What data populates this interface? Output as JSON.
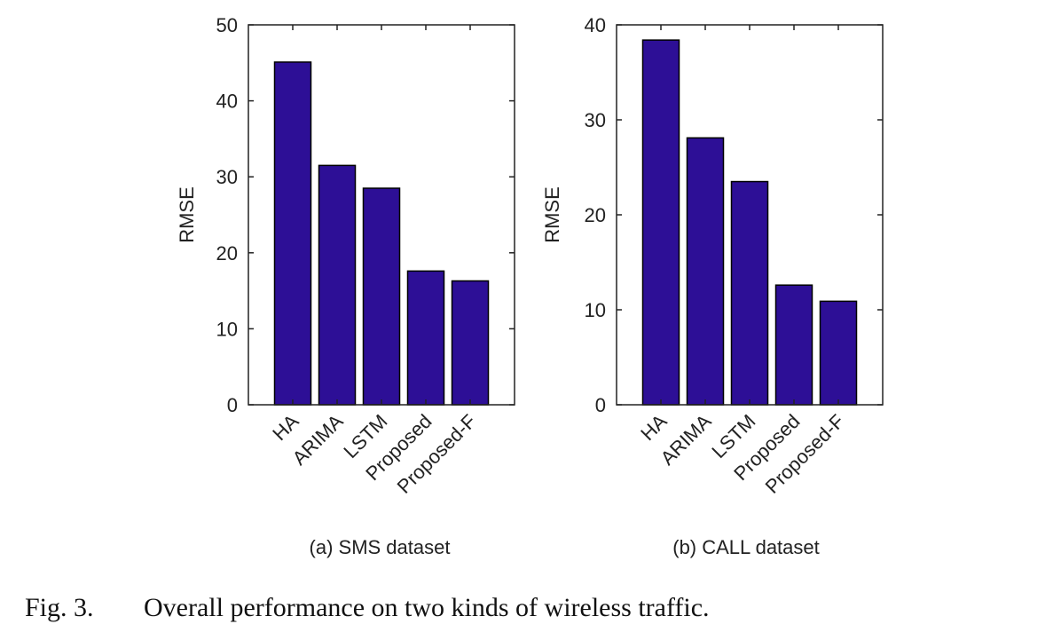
{
  "figure": {
    "caption_label": "Fig. 3.",
    "caption_text": "Overall performance on two kinds of wireless traffic.",
    "bar_color": "#2d0f96"
  },
  "chart_data": [
    {
      "type": "bar",
      "subcaption": "(a) SMS dataset",
      "ylabel": "RMSE",
      "xlabel": "",
      "categories": [
        "HA",
        "ARIMA",
        "LSTM",
        "Proposed",
        "Proposed-F"
      ],
      "values": [
        45.1,
        31.5,
        28.5,
        17.6,
        16.3
      ],
      "ylim": [
        0,
        50
      ],
      "yticks": [
        0,
        10,
        20,
        30,
        40,
        50
      ],
      "grid": false,
      "legend": "none"
    },
    {
      "type": "bar",
      "subcaption": "(b) CALL dataset",
      "ylabel": "RMSE",
      "xlabel": "",
      "categories": [
        "HA",
        "ARIMA",
        "LSTM",
        "Proposed",
        "Proposed-F"
      ],
      "values": [
        38.4,
        28.1,
        23.5,
        12.6,
        10.9
      ],
      "ylim": [
        0,
        40
      ],
      "yticks": [
        0,
        10,
        20,
        30,
        40
      ],
      "grid": false,
      "legend": "none"
    }
  ]
}
